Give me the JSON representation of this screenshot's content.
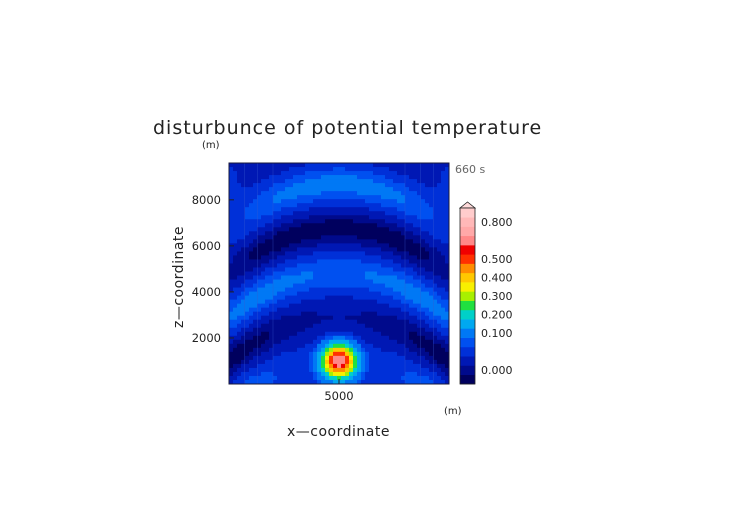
{
  "chart_data": {
    "type": "heatmap",
    "title": "disturbunce of potential temperature",
    "xlabel": "x—coordinate",
    "ylabel": "z—coordinate",
    "x_unit": "(m)",
    "y_unit": "(m)",
    "time_label": "660 s",
    "x_ticks": [
      5000
    ],
    "y_ticks": [
      2000,
      4000,
      6000,
      8000
    ],
    "xlim": [
      0,
      10000
    ],
    "ylim": [
      0,
      9600
    ],
    "source": {
      "x": 5000,
      "z": 1000,
      "sigma_x": 750,
      "sigma_z": 700,
      "peak": 0.6
    },
    "colorbar": {
      "labels": [
        "0.000",
        "0.100",
        "0.200",
        "0.300",
        "0.400",
        "0.500",
        "0.800"
      ],
      "label_values": [
        0.0,
        0.1,
        0.2,
        0.3,
        0.4,
        0.5,
        0.8
      ],
      "levels": [
        {
          "value": -0.05,
          "color": "#00005e"
        },
        {
          "value": 0.0,
          "color": "#000a8c"
        },
        {
          "value": 0.02,
          "color": "#0018b4"
        },
        {
          "value": 0.05,
          "color": "#0030d8"
        },
        {
          "value": 0.08,
          "color": "#0050f0"
        },
        {
          "value": 0.1,
          "color": "#0078f5"
        },
        {
          "value": 0.15,
          "color": "#00a8f0"
        },
        {
          "value": 0.2,
          "color": "#00d0c8"
        },
        {
          "value": 0.25,
          "color": "#20e040"
        },
        {
          "value": 0.3,
          "color": "#a8f000"
        },
        {
          "value": 0.35,
          "color": "#f8f000"
        },
        {
          "value": 0.4,
          "color": "#ffc800"
        },
        {
          "value": 0.45,
          "color": "#ff8c00"
        },
        {
          "value": 0.5,
          "color": "#ff3000"
        },
        {
          "value": 0.55,
          "color": "#f00000"
        },
        {
          "value": 0.6,
          "color": "#ff8888"
        },
        {
          "value": 0.7,
          "color": "#ffa8a8"
        },
        {
          "value": 0.8,
          "color": "#ffb8b8"
        },
        {
          "value": 0.9,
          "color": "#ffcccc"
        }
      ]
    }
  }
}
